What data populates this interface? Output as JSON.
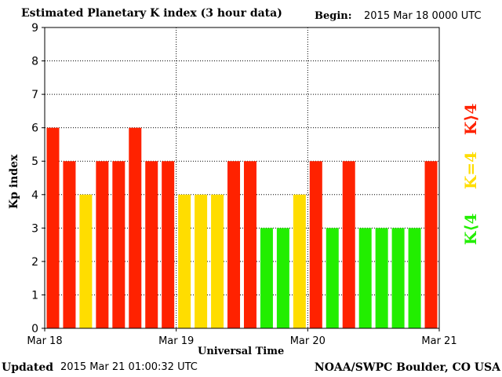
{
  "header": {
    "title": "Estimated Planetary K index (3 hour data)",
    "begin_label": "Begin:",
    "begin_value": "2015 Mar 18 0000 UTC"
  },
  "footer": {
    "updated_label": "Updated",
    "updated_value": "2015 Mar 21 01:00:32 UTC",
    "source": "NOAA/SWPC Boulder, CO USA"
  },
  "legend": {
    "high": {
      "label": "K⟩4",
      "color": "#ff2200"
    },
    "equal": {
      "label": "K=4",
      "color": "#ffdd00"
    },
    "low": {
      "label": "K⟨4",
      "color": "#22ee00"
    }
  },
  "chart_data": {
    "type": "bar",
    "title": "Estimated Planetary K index (3 hour data)",
    "xlabel": "Universal Time",
    "ylabel": "Kp index",
    "ylim": [
      0,
      9
    ],
    "yticks": [
      "0",
      "1",
      "2",
      "3",
      "4",
      "5",
      "6",
      "7",
      "8",
      "9"
    ],
    "xtick_labels": [
      "Mar 18",
      "Mar 19",
      "Mar 20",
      "Mar 21"
    ],
    "grid": true,
    "values": [
      6,
      5,
      4,
      5,
      5,
      6,
      5,
      5,
      4,
      4,
      4,
      5,
      5,
      3,
      3,
      4,
      5,
      3,
      5,
      3,
      3,
      3,
      3,
      5
    ],
    "colors": {
      "high": "#ff2200",
      "equal": "#ffdd00",
      "low": "#22ee00"
    }
  }
}
